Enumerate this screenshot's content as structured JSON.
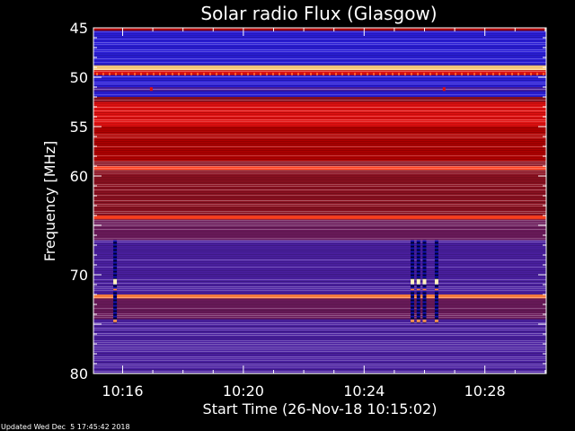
{
  "chart_data": {
    "type": "heatmap",
    "title": "Solar radio Flux (Glasgow)",
    "xlabel": "Start Time (26-Nov-18 10:15:02)",
    "ylabel": "Frequency [MHz]",
    "footer": "Updated Wed Dec  5 17:45:42 2018",
    "start_time_min": 15.0333,
    "xlim_min": [
      15.0333,
      30.0333
    ],
    "ylim_mhz": [
      45,
      80
    ],
    "x_ticks": [
      {
        "min": 16,
        "label": "10:16"
      },
      {
        "min": 20,
        "label": "10:20"
      },
      {
        "min": 24,
        "label": "10:24"
      },
      {
        "min": 28,
        "label": "10:28"
      }
    ],
    "y_ticks": [
      {
        "mhz": 45,
        "label": "45"
      },
      {
        "mhz": 50,
        "label": "50"
      },
      {
        "mhz": 55,
        "label": "55"
      },
      {
        "mhz": 60,
        "label": "60"
      },
      {
        "mhz": 70,
        "label": "70"
      },
      {
        "mhz": 80,
        "label": "80"
      }
    ],
    "colorscale": [
      "#000000",
      "#1a0a8a",
      "#2a1dd6",
      "#4a1fa0",
      "#6a1a5a",
      "#8a1020",
      "#b00000",
      "#e01010",
      "#ff4020",
      "#ff8040",
      "#ffd080",
      "#ffffff"
    ],
    "bands": [
      {
        "mhz": [
          45.0,
          45.3
        ],
        "level": 6
      },
      {
        "mhz": [
          45.3,
          48.8
        ],
        "level": 2
      },
      {
        "mhz": [
          48.8,
          49.3
        ],
        "level": 10
      },
      {
        "mhz": [
          49.3,
          49.8
        ],
        "level": 7
      },
      {
        "mhz": [
          49.8,
          51.0
        ],
        "level": 2
      },
      {
        "mhz": [
          51.0,
          51.4
        ],
        "level": 3
      },
      {
        "mhz": [
          51.4,
          52.0
        ],
        "level": 2
      },
      {
        "mhz": [
          52.0,
          52.5
        ],
        "level": 5
      },
      {
        "mhz": [
          52.5,
          53.0
        ],
        "level": 7
      },
      {
        "mhz": [
          53.0,
          55.0
        ],
        "level": 7
      },
      {
        "mhz": [
          55.0,
          58.5
        ],
        "level": 6
      },
      {
        "mhz": [
          58.5,
          59.0
        ],
        "level": 5
      },
      {
        "mhz": [
          59.0,
          59.4
        ],
        "level": 8
      },
      {
        "mhz": [
          59.4,
          64.0
        ],
        "level": 5
      },
      {
        "mhz": [
          64.0,
          64.4
        ],
        "level": 8
      },
      {
        "mhz": [
          64.4,
          66.5
        ],
        "level": 4
      },
      {
        "mhz": [
          66.5,
          72.0
        ],
        "level": 3
      },
      {
        "mhz": [
          72.0,
          72.4
        ],
        "level": 9
      },
      {
        "mhz": [
          72.4,
          74.5
        ],
        "level": 4
      },
      {
        "mhz": [
          74.5,
          80.0
        ],
        "level": 3
      }
    ],
    "bursts": [
      {
        "min": 15.75,
        "mhz": [
          66.5,
          74.8
        ]
      },
      {
        "min": 25.6,
        "mhz": [
          66.5,
          74.8
        ]
      },
      {
        "min": 25.8,
        "mhz": [
          66.5,
          74.8
        ]
      },
      {
        "min": 26.0,
        "mhz": [
          66.5,
          74.8
        ]
      },
      {
        "min": 26.4,
        "mhz": [
          66.5,
          74.8
        ]
      }
    ],
    "spots": [
      {
        "min": 16.95,
        "mhz": 51.2
      },
      {
        "min": 26.65,
        "mhz": 51.2
      }
    ]
  }
}
